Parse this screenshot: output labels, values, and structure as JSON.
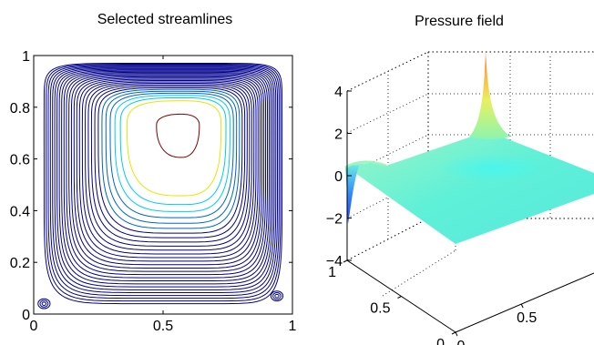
{
  "chart_data": [
    {
      "type": "contour",
      "title": "Selected streamlines",
      "xlabel": "",
      "ylabel": "",
      "xlim": [
        0,
        1
      ],
      "ylim": [
        0,
        1
      ],
      "x_ticks": [
        "0",
        "0.5",
        "1"
      ],
      "y_ticks": [
        "0",
        "0.2",
        "0.4",
        "0.6",
        "0.8",
        "1"
      ],
      "grid": false,
      "legend": "none",
      "primary_vortex_center": [
        0.57,
        0.73
      ],
      "streamline_levels": [
        {
          "level": 1,
          "color": "#7f0000",
          "count": 1
        },
        {
          "level": 2,
          "color": "#e6e600",
          "count": 1
        },
        {
          "level": 3,
          "color": "#00c8ff",
          "count": 2
        },
        {
          "level": 4,
          "color": "#0064c8",
          "count": 3
        },
        {
          "level": 5,
          "color": "#00008c",
          "count": 22
        }
      ],
      "corner_eddies": [
        {
          "location": "bottom-left",
          "x": 0.04,
          "y": 0.04
        },
        {
          "location": "bottom-right",
          "x": 0.94,
          "y": 0.07
        }
      ]
    },
    {
      "type": "surface",
      "title": "Pressure field",
      "xlabel": "",
      "ylabel": "",
      "zlabel": "",
      "zlim": [
        -4,
        4
      ],
      "z_ticks": [
        "4",
        "2",
        "0",
        "−2",
        "−4"
      ],
      "x_ticks": [
        "0",
        "0.5",
        "1"
      ],
      "y_ticks": [
        "0",
        "0.5"
      ],
      "grid": true,
      "colormap": "jet",
      "features": [
        {
          "location": "top-right corner",
          "value": 4.2
        },
        {
          "location": "top-left corner",
          "value": -2.6
        },
        {
          "location": "interior",
          "value": 0
        }
      ]
    }
  ]
}
